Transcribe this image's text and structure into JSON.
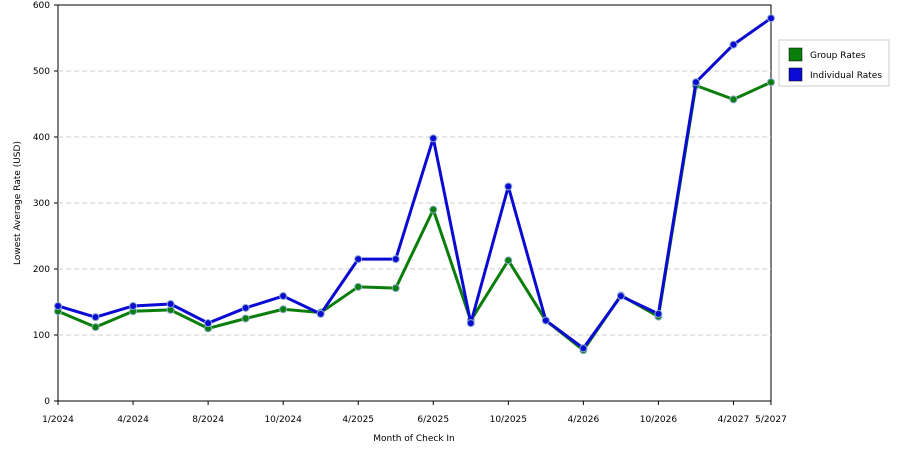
{
  "chart_data": {
    "type": "line",
    "x_label": "Month of Check In",
    "y_label": "Lowest Average Rate (USD)",
    "categories": [
      "1/2024",
      null,
      "4/2024",
      null,
      "8/2024",
      null,
      "10/2024",
      null,
      "4/2025",
      null,
      "6/2025",
      null,
      "10/2025",
      null,
      "4/2026",
      null,
      "10/2026",
      null,
      "4/2027",
      "5/2027"
    ],
    "series": [
      {
        "name": "Group Rates",
        "color": "#0a7d0a",
        "values": [
          136,
          112,
          136,
          138,
          110,
          125,
          139,
          134,
          173,
          171,
          290,
          122,
          213,
          122,
          77,
          160,
          128,
          478,
          457,
          483
        ]
      },
      {
        "name": "Individual Rates",
        "color": "#0a0ad2",
        "values": [
          144,
          127,
          144,
          147,
          118,
          141,
          159,
          132,
          215,
          215,
          398,
          118,
          325,
          122,
          80,
          159,
          132,
          483,
          540,
          580
        ]
      }
    ],
    "ylim": [
      0,
      600
    ],
    "yticks": [
      0,
      100,
      200,
      300,
      400,
      500,
      600
    ],
    "grid": true,
    "legend": "right"
  }
}
